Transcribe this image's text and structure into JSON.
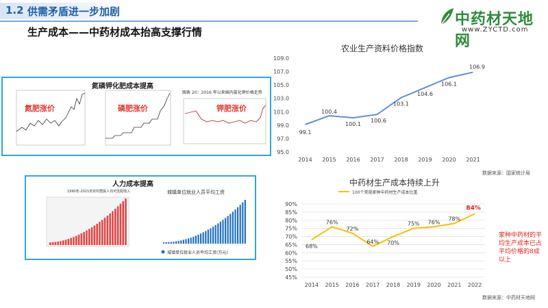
{
  "header": {
    "section_number": "1.2",
    "section_title": "供需矛盾进一步加剧"
  },
  "logo": {
    "name": "中药材天地网",
    "url": "www.ZYCTD.com"
  },
  "subtitle": "生产成本——中药材成本抬高支撑行情",
  "fertilizer_panel": {
    "title": "氮磷钾化肥成本提高",
    "labels": [
      "氮肥涨价",
      "磷肥涨价",
      "钾肥涨价"
    ],
    "mini_title_3": "图表 20：2016 年以来国内氯化钾价格走势"
  },
  "labor_panel": {
    "title": "人力成本提高",
    "left_chart_title": "1990年-2021年农村居民人均可支配收入",
    "right_chart_title": "城镇单位就业人员平均工资",
    "right_chart_legend": "城镇单位就业人员平均工资(万元)"
  },
  "note": "家种中药材的平均生产成本已占平均价格的8成以上",
  "colors": {
    "accent_blue": "#1f5fa8",
    "line_blue": "#5b8fd4",
    "line_yellow": "#f2c200",
    "highlight_red": "#e0201a",
    "panel_border": "#2da7d9"
  },
  "chart_data": [
    {
      "type": "line",
      "title": "农业生产资料价格指数",
      "x": [
        "2014",
        "2015",
        "2016",
        "2017",
        "2018",
        "2019",
        "2020",
        "2021"
      ],
      "series": [
        {
          "name": "农业生产资料价格指数",
          "values": [
            99.1,
            100.4,
            100.1,
            100.6,
            103.1,
            104.6,
            106.1,
            106.9
          ]
        }
      ],
      "data_labels": [
        "99.1",
        "100.4",
        "100.1",
        "100.6",
        "103.1",
        "104.6",
        "106.1",
        "106.9"
      ],
      "ylim": [
        95.0,
        109.0
      ],
      "yticks": [
        "95.0",
        "97.0",
        "99.0",
        "101.0",
        "103.0",
        "105.0",
        "107.0",
        "109.0"
      ],
      "source": "数据来源：国家统计局"
    },
    {
      "type": "line",
      "title": "中药材生产成本持续上升",
      "legend": "100个常规家种中药材生产成本比重",
      "x": [
        "2014",
        "2015",
        "2016",
        "2017",
        "2018",
        "2019",
        "2020",
        "2021",
        "2022"
      ],
      "series": [
        {
          "name": "100个常规家种中药材生产成本比重",
          "values": [
            68,
            76,
            72,
            64,
            70,
            75,
            76,
            78,
            84
          ]
        }
      ],
      "data_labels": [
        "68%",
        "76%",
        "72%",
        "64%",
        "70%",
        "75%",
        "76%",
        "78%",
        "84%"
      ],
      "ylim": [
        45,
        90
      ],
      "yticks": [
        "45%",
        "50%",
        "55%",
        "60%",
        "65%",
        "70%",
        "75%",
        "80%",
        "85%",
        "90%"
      ],
      "source": "数据来源：中药材天地网"
    }
  ]
}
